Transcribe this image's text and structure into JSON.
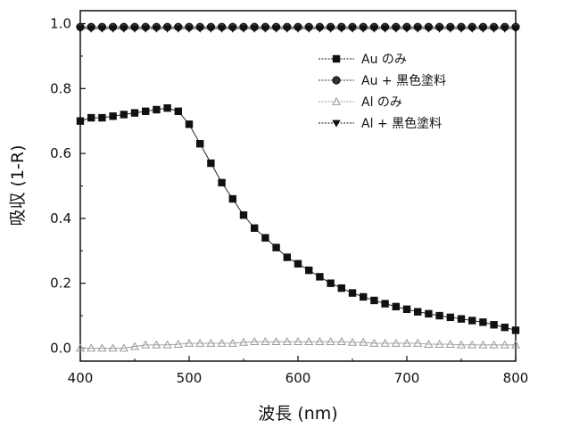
{
  "chart_data": {
    "type": "line",
    "xlabel": "波長 (nm)",
    "ylabel": "吸収 (1-R)",
    "xlim": [
      400,
      800
    ],
    "ylim": [
      -0.04,
      1.04
    ],
    "xticks": [
      400,
      500,
      600,
      700,
      800
    ],
    "yticks": [
      0.0,
      0.2,
      0.4,
      0.6,
      0.8,
      1.0
    ],
    "xtick_labels": [
      "400",
      "500",
      "600",
      "700",
      "800"
    ],
    "ytick_labels": [
      "0.0",
      "0.2",
      "0.4",
      "0.6",
      "0.8",
      "1.0"
    ],
    "grid": false,
    "legend_position": "top-right",
    "x": [
      400,
      410,
      420,
      430,
      440,
      450,
      460,
      470,
      480,
      490,
      500,
      510,
      520,
      530,
      540,
      550,
      560,
      570,
      580,
      590,
      600,
      610,
      620,
      630,
      640,
      650,
      660,
      670,
      680,
      690,
      700,
      710,
      720,
      730,
      740,
      750,
      760,
      770,
      780,
      790,
      800
    ],
    "series": [
      {
        "name": "Au のみ",
        "marker": "square",
        "color": "#111111",
        "values": [
          0.7,
          0.71,
          0.71,
          0.715,
          0.72,
          0.725,
          0.73,
          0.735,
          0.74,
          0.73,
          0.69,
          0.63,
          0.57,
          0.51,
          0.46,
          0.41,
          0.37,
          0.34,
          0.31,
          0.28,
          0.26,
          0.24,
          0.22,
          0.2,
          0.185,
          0.17,
          0.158,
          0.147,
          0.137,
          0.128,
          0.12,
          0.112,
          0.106,
          0.1,
          0.095,
          0.09,
          0.085,
          0.08,
          0.072,
          0.064,
          0.055
        ]
      },
      {
        "name": "Au + 黒色塗料",
        "marker": "circle",
        "color": "#333333",
        "values": [
          0.99,
          0.99,
          0.99,
          0.99,
          0.99,
          0.99,
          0.99,
          0.99,
          0.99,
          0.99,
          0.99,
          0.99,
          0.99,
          0.99,
          0.99,
          0.99,
          0.99,
          0.99,
          0.99,
          0.99,
          0.99,
          0.99,
          0.99,
          0.99,
          0.99,
          0.99,
          0.99,
          0.99,
          0.99,
          0.99,
          0.99,
          0.99,
          0.99,
          0.99,
          0.99,
          0.99,
          0.99,
          0.99,
          0.99,
          0.99,
          0.99
        ]
      },
      {
        "name": "Al のみ",
        "marker": "triangle-up",
        "color": "#999999",
        "values": [
          0.0,
          0.0,
          0.0,
          0.0,
          0.0,
          0.005,
          0.01,
          0.01,
          0.01,
          0.012,
          0.015,
          0.015,
          0.015,
          0.015,
          0.015,
          0.018,
          0.02,
          0.02,
          0.02,
          0.02,
          0.02,
          0.02,
          0.02,
          0.02,
          0.02,
          0.018,
          0.018,
          0.015,
          0.015,
          0.015,
          0.015,
          0.015,
          0.012,
          0.012,
          0.012,
          0.01,
          0.01,
          0.01,
          0.01,
          0.01,
          0.01
        ]
      },
      {
        "name": "Al + 黒色塗料",
        "marker": "triangle-down",
        "color": "#111111",
        "values": [
          0.985,
          0.985,
          0.985,
          0.985,
          0.985,
          0.985,
          0.985,
          0.985,
          0.985,
          0.985,
          0.985,
          0.985,
          0.985,
          0.985,
          0.985,
          0.985,
          0.985,
          0.985,
          0.985,
          0.985,
          0.985,
          0.985,
          0.985,
          0.985,
          0.985,
          0.985,
          0.985,
          0.985,
          0.985,
          0.985,
          0.985,
          0.985,
          0.985,
          0.985,
          0.985,
          0.985,
          0.985,
          0.985,
          0.985,
          0.985,
          0.985
        ]
      }
    ]
  }
}
